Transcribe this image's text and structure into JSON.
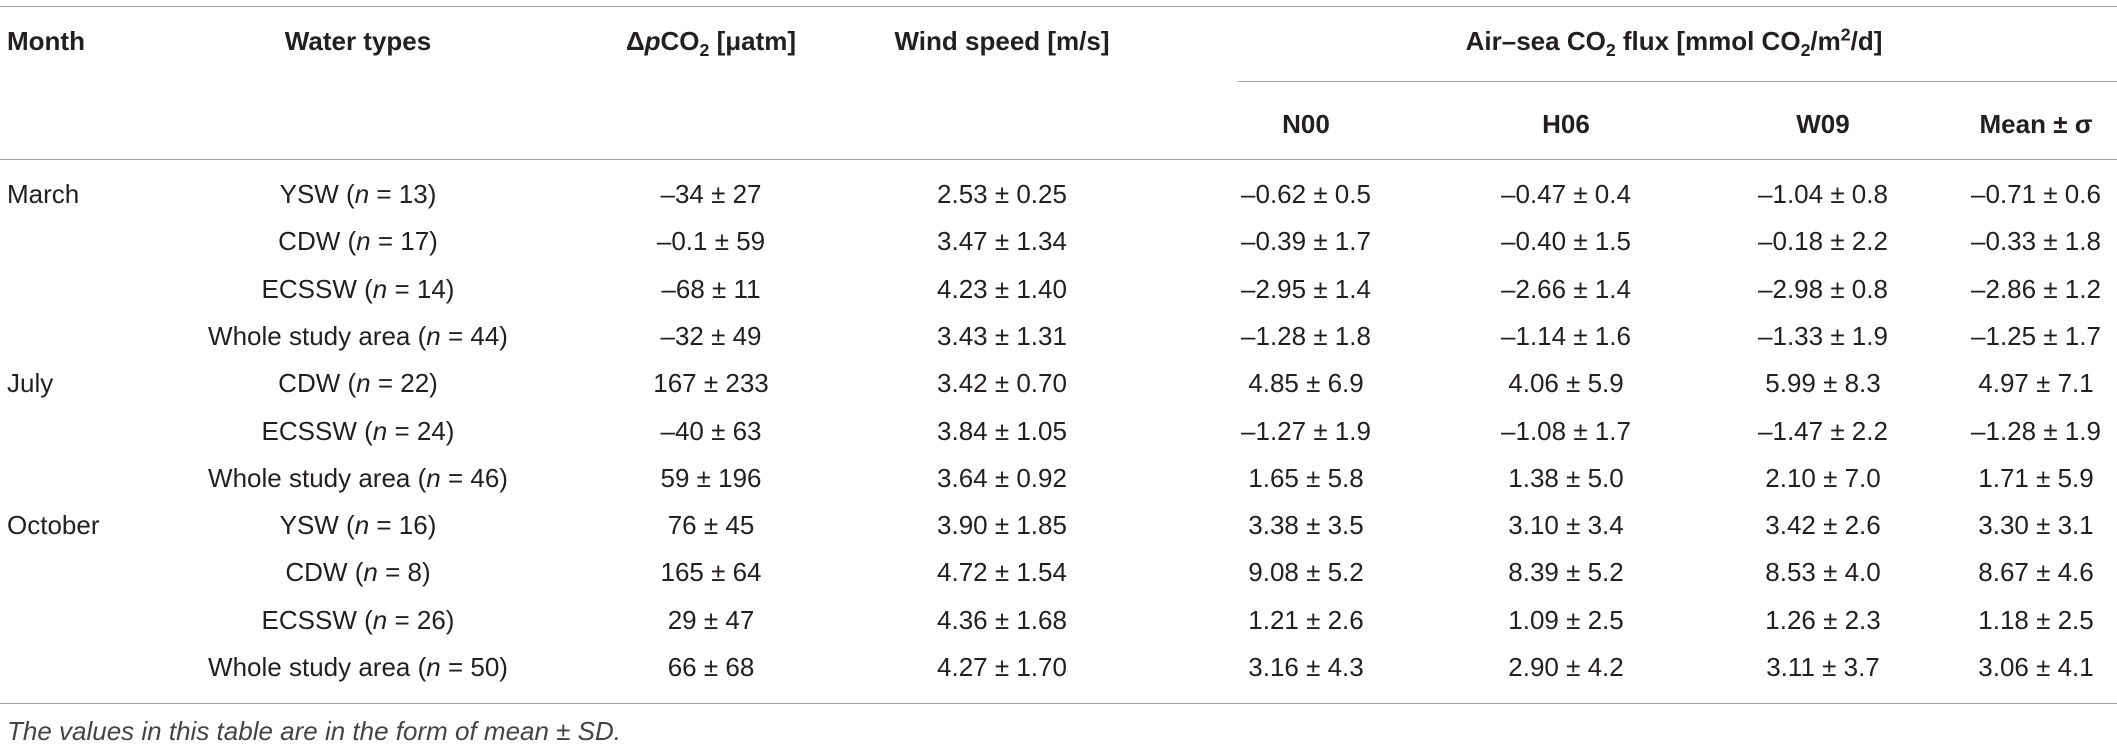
{
  "header": {
    "month": "Month",
    "water_types": "Water types",
    "delta_pco2": [
      "Δ",
      "p",
      "CO",
      "2",
      " [μatm]"
    ],
    "wind_speed": "Wind speed [m/s]",
    "flux": [
      "Air–sea CO",
      "2",
      " flux [mmol CO",
      "2",
      "/m",
      "2",
      "/d]"
    ],
    "flux_methods": [
      "N00",
      "H06",
      "W09",
      "Mean ± σ"
    ]
  },
  "groups": [
    {
      "month": "March",
      "rows": [
        {
          "water_type": [
            "YSW (",
            "n",
            " = 13)"
          ],
          "cells": [
            "–34 ± 27",
            "2.53 ± 0.25",
            "–0.62 ± 0.5",
            "–0.47 ± 0.4",
            "–1.04 ± 0.8",
            "–0.71 ± 0.6"
          ]
        },
        {
          "water_type": [
            "CDW (",
            "n",
            " = 17)"
          ],
          "cells": [
            "–0.1 ± 59",
            "3.47 ± 1.34",
            "–0.39 ± 1.7",
            "–0.40 ± 1.5",
            "–0.18 ± 2.2",
            "–0.33 ± 1.8"
          ]
        },
        {
          "water_type": [
            "ECSSW (",
            "n",
            " = 14)"
          ],
          "cells": [
            "–68 ± 11",
            "4.23 ± 1.40",
            "–2.95 ± 1.4",
            "–2.66 ± 1.4",
            "–2.98 ± 0.8",
            "–2.86 ± 1.2"
          ]
        },
        {
          "water_type": [
            "Whole study area (",
            "n",
            " = 44)"
          ],
          "cells": [
            "–32 ± 49",
            "3.43 ± 1.31",
            "–1.28 ± 1.8",
            "–1.14 ± 1.6",
            "–1.33 ± 1.9",
            "–1.25 ± 1.7"
          ]
        }
      ]
    },
    {
      "month": "July",
      "rows": [
        {
          "water_type": [
            "CDW (",
            "n",
            " = 22)"
          ],
          "cells": [
            "167 ± 233",
            "3.42 ± 0.70",
            "4.85 ± 6.9",
            "4.06 ± 5.9",
            "5.99 ± 8.3",
            "4.97 ± 7.1"
          ]
        },
        {
          "water_type": [
            "ECSSW (",
            "n",
            " = 24)"
          ],
          "cells": [
            "–40 ± 63",
            "3.84 ± 1.05",
            "–1.27 ± 1.9",
            "–1.08 ± 1.7",
            "–1.47 ± 2.2",
            "–1.28 ± 1.9"
          ]
        },
        {
          "water_type": [
            "Whole study area (",
            "n",
            " = 46)"
          ],
          "cells": [
            "59 ± 196",
            "3.64 ± 0.92",
            "1.65 ± 5.8",
            "1.38 ± 5.0",
            "2.10 ± 7.0",
            "1.71 ± 5.9"
          ]
        }
      ]
    },
    {
      "month": "October",
      "rows": [
        {
          "water_type": [
            "YSW (",
            "n",
            " = 16)"
          ],
          "cells": [
            "76 ± 45",
            "3.90 ± 1.85",
            "3.38 ± 3.5",
            "3.10 ± 3.4",
            "3.42 ± 2.6",
            "3.30 ± 3.1"
          ]
        },
        {
          "water_type": [
            "CDW (",
            "n",
            " = 8)"
          ],
          "cells": [
            "165 ± 64",
            "4.72 ± 1.54",
            "9.08 ± 5.2",
            "8.39 ± 5.2",
            "8.53 ± 4.0",
            "8.67 ± 4.6"
          ]
        },
        {
          "water_type": [
            "ECSSW (",
            "n",
            " = 26)"
          ],
          "cells": [
            "29 ± 47",
            "4.36 ± 1.68",
            "1.21 ± 2.6",
            "1.09 ± 2.5",
            "1.26 ± 2.3",
            "1.18 ± 2.5"
          ]
        },
        {
          "water_type": [
            "Whole study area (",
            "n",
            " = 50)"
          ],
          "cells": [
            "66 ± 68",
            "4.27 ± 1.70",
            "3.16 ± 4.3",
            "2.90 ± 4.2",
            "3.11 ± 3.7",
            "3.06 ± 4.1"
          ]
        }
      ]
    }
  ],
  "footnote": "The values in this table are in the form of mean ± SD."
}
